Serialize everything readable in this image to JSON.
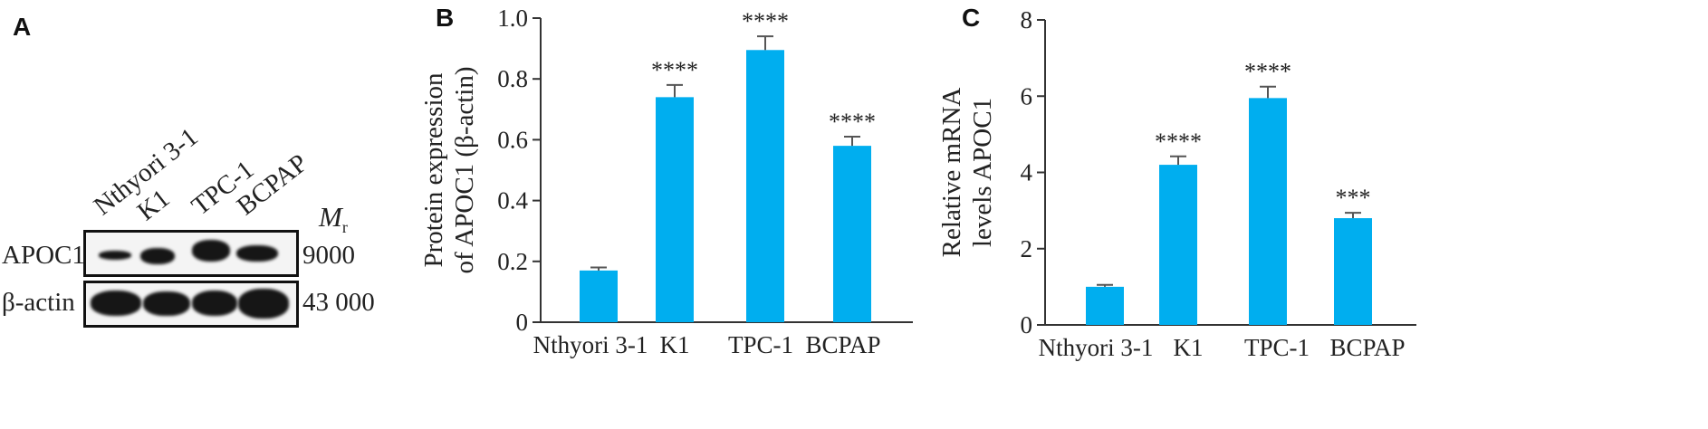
{
  "panels": {
    "a": "A",
    "b": "B",
    "c": "C"
  },
  "blot": {
    "lanes": [
      "Nthyori 3-1",
      "K1",
      "TPC-1",
      "BCPAP"
    ],
    "mr_header": "M",
    "mr_sub": "r",
    "rows": [
      {
        "label": "APOC1",
        "mr": "9000"
      },
      {
        "label": "β-actin",
        "mr": "43 000"
      }
    ]
  },
  "chart_data": [
    {
      "type": "bar",
      "panel": "B",
      "categories": [
        "Nthyori 3-1",
        "K1",
        "TPC-1",
        "BCPAP"
      ],
      "values": [
        0.17,
        0.74,
        0.895,
        0.58
      ],
      "errors": [
        0.01,
        0.04,
        0.045,
        0.03
      ],
      "significance": [
        "",
        "****",
        "****",
        "****"
      ],
      "ylabel_lines": [
        "Protein expression",
        "of APOC1 (β-actin)"
      ],
      "ylim": [
        0,
        1.0
      ],
      "yticks": [
        0,
        0.2,
        0.4,
        0.6,
        0.8,
        1.0
      ],
      "ytick_labels": [
        "0",
        "0.2",
        "0.4",
        "0.6",
        "0.8",
        "1.0"
      ],
      "bar_color": "#00aeef"
    },
    {
      "type": "bar",
      "panel": "C",
      "categories": [
        "Nthyori 3-1",
        "K1",
        "TPC-1",
        "BCPAP"
      ],
      "values": [
        1.0,
        4.2,
        5.95,
        2.8
      ],
      "errors": [
        0.05,
        0.22,
        0.3,
        0.14
      ],
      "significance": [
        "",
        "****",
        "****",
        "***"
      ],
      "ylabel_lines": [
        "Relative mRNA",
        "levels APOC1"
      ],
      "ylim": [
        0,
        8
      ],
      "yticks": [
        0,
        2,
        4,
        6,
        8
      ],
      "ytick_labels": [
        "0",
        "2",
        "4",
        "6",
        "8"
      ],
      "bar_color": "#00aeef"
    }
  ]
}
